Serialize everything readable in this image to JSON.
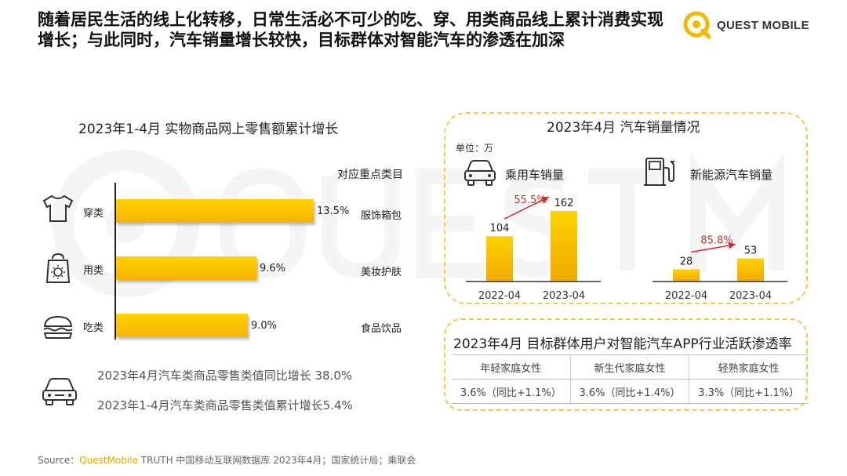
{
  "headline": "随着居民生活的线上化转移，日常生活必不可少的吃、穿、用类商品线上累计消费实现增长；与此同时，汽车销量增长较快，目标群体对智能汽车的渗透在加深",
  "logo": {
    "text": "QUEST MOBILE",
    "accent": "#f5b800"
  },
  "left_chart": {
    "title": "2023年1-4月 实物商品网上零售额累计增长",
    "category_header": "对应重点类目",
    "rows": [
      {
        "label": "穿类",
        "icon": "tshirt-icon",
        "value_label": "13.5%",
        "category": "服饰箱包"
      },
      {
        "label": "用类",
        "icon": "bag-icon",
        "value_label": "9.6%",
        "category": "美妆护肤"
      },
      {
        "label": "吃类",
        "icon": "burger-icon",
        "value_label": "9.0%",
        "category": "食品饮品"
      }
    ],
    "notes": [
      "2023年4月汽车类商品零售类值同比增长 38.0%",
      "2023年1-4月汽车类商品零售类值累计增长5.4%"
    ]
  },
  "car_sales": {
    "title": "2023年4月 汽车销量情况",
    "unit": "单位：万",
    "passenger_label": "乘用车销量",
    "nev_label": "新能源汽车销量"
  },
  "chart_data": [
    {
      "type": "bar",
      "title": "2023年1-4月 实物商品网上零售额累计增长",
      "categories": [
        "穿类",
        "用类",
        "吃类"
      ],
      "values": [
        13.5,
        9.6,
        9.0
      ],
      "orientation": "horizontal"
    },
    {
      "type": "bar",
      "title": "乘用车销量",
      "categories": [
        "2022-04",
        "2023-04"
      ],
      "values": [
        104,
        162
      ],
      "growth_label": "55.5%"
    },
    {
      "type": "bar",
      "title": "新能源汽车销量",
      "categories": [
        "2022-04",
        "2023-04"
      ],
      "values": [
        28,
        53
      ],
      "growth_label": "85.8%"
    }
  ],
  "penetration": {
    "title": "2023年4月 目标群体用户对智能汽车APP行业活跃渗透率",
    "headers": [
      "年轻家庭女性",
      "新生代家庭女性",
      "轻熟家庭女性"
    ],
    "values": [
      "3.6%（同比+1.1%）",
      "3.6%（同比+1.4%）",
      "3.3%（同比+1.1%）"
    ]
  },
  "source": {
    "prefix": "Source：",
    "brand": "QuestMobile",
    "rest": " TRUTH 中国移动互联网数据库 2023年4月；国家统计局；乘联会"
  },
  "colors": {
    "bar": "#f7b400",
    "growth": "#d62b2b",
    "dash": "#f5c94a"
  }
}
